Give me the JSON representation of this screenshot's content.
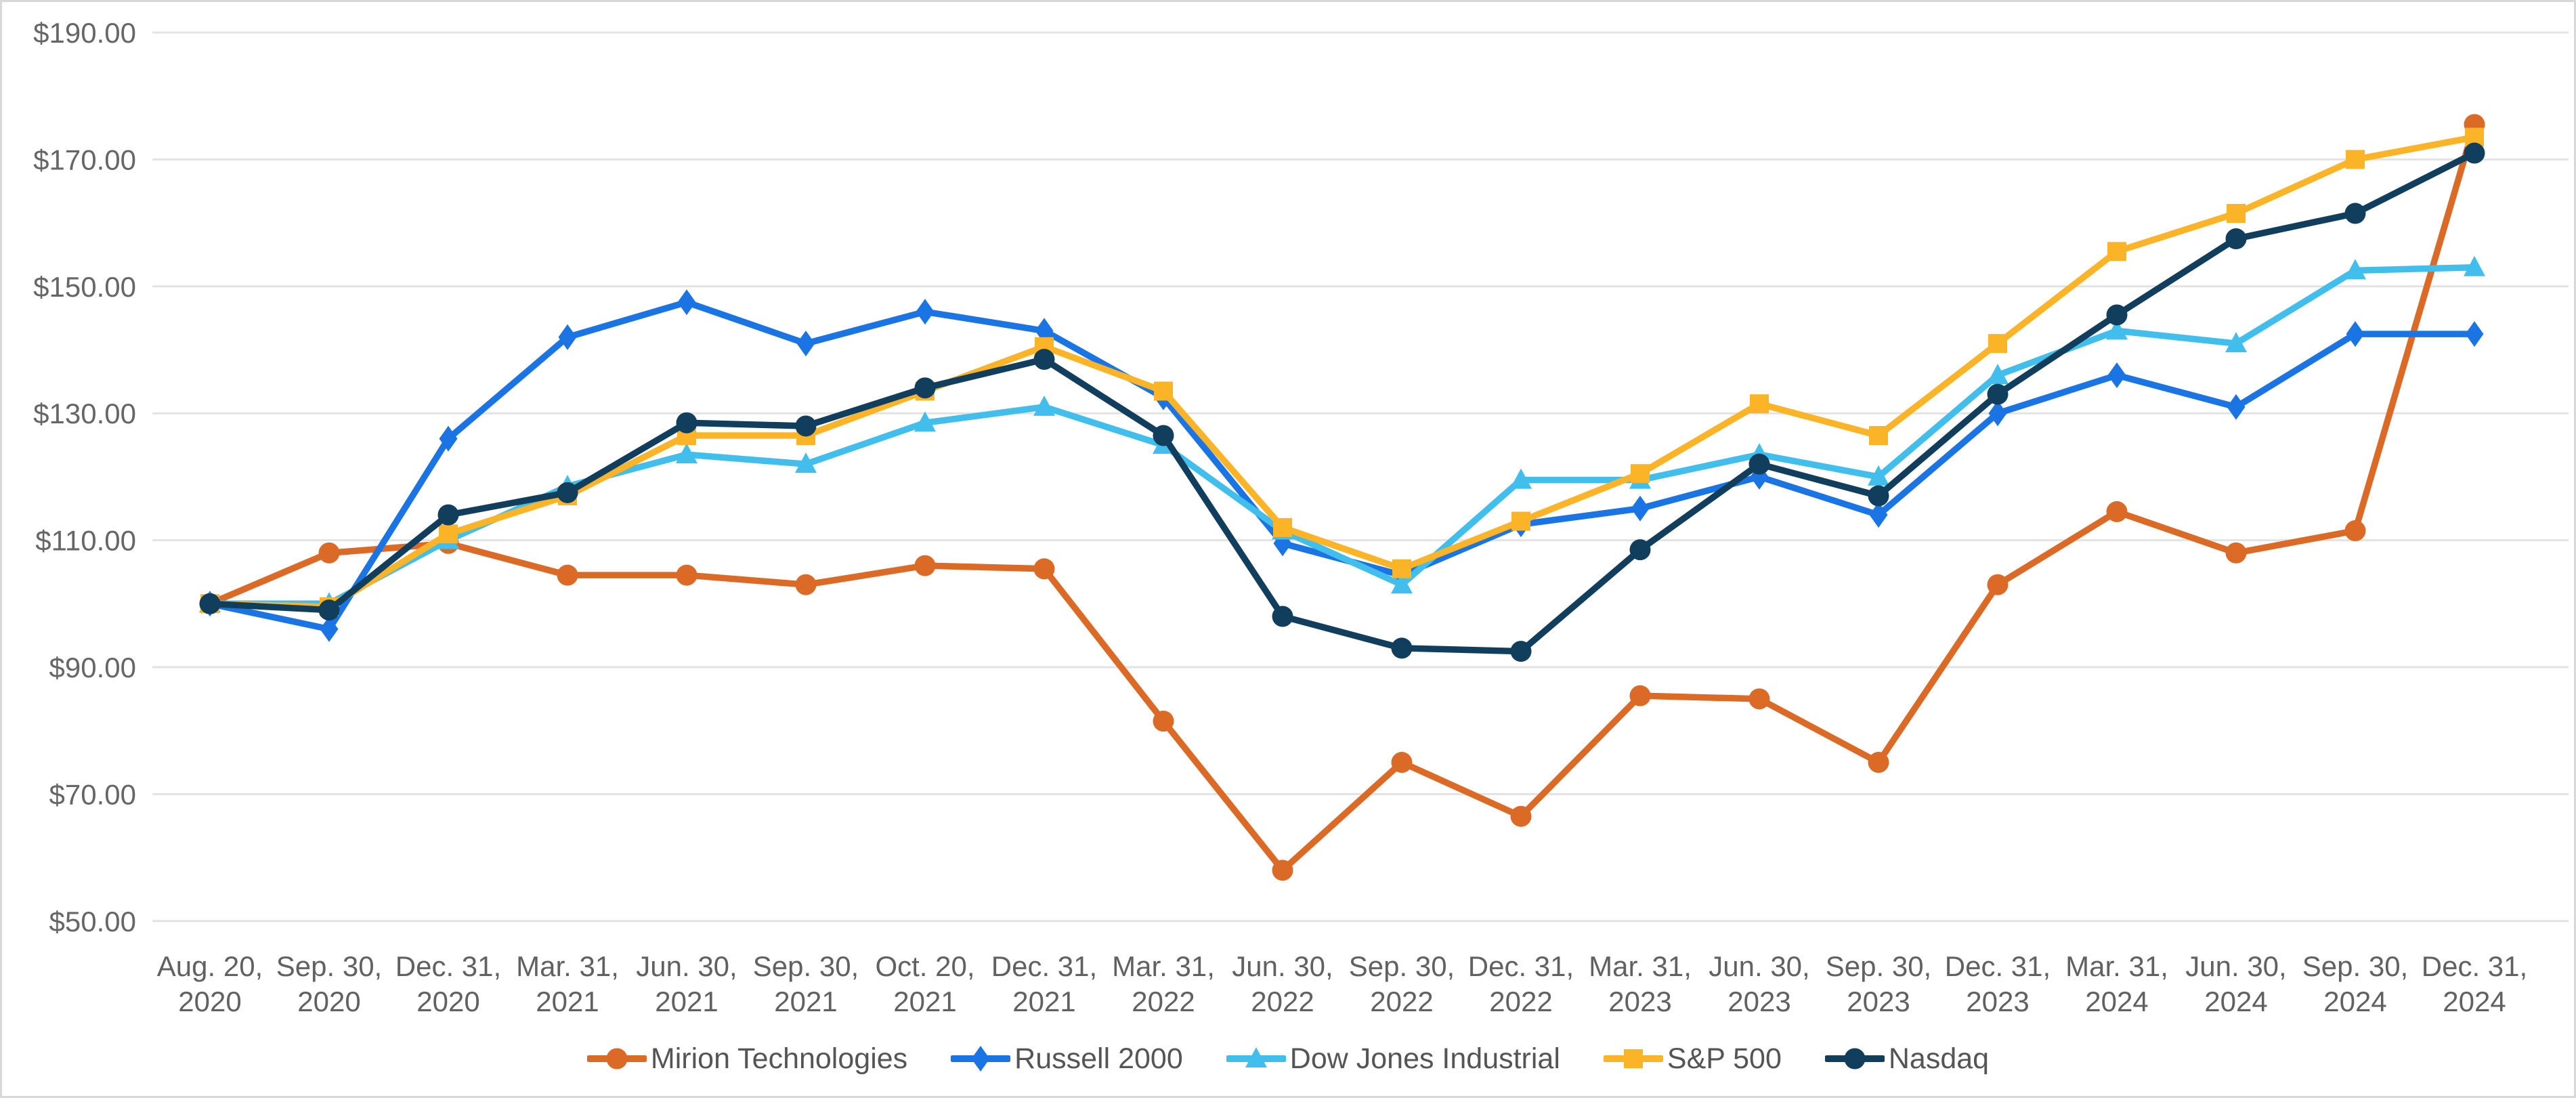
{
  "chart_data": {
    "type": "line",
    "title": "",
    "xlabel": "",
    "ylabel": "",
    "y_min": 50,
    "y_max": 190,
    "grid": true,
    "legend_position": "bottom",
    "y_ticks": [
      "$190.00",
      "$170.00",
      "$150.00",
      "$130.00",
      "$110.00",
      "$90.00",
      "$70.00",
      "$50.00"
    ],
    "categories": [
      "Aug. 20, 2020",
      "Sep. 30, 2020",
      "Dec. 31, 2020",
      "Mar. 31, 2021",
      "Jun. 30, 2021",
      "Sep. 30, 2021",
      "Oct. 20, 2021",
      "Dec. 31, 2021",
      "Mar. 31, 2022",
      "Jun. 30, 2022",
      "Sep. 30, 2022",
      "Dec. 31, 2022",
      "Mar. 31, 2023",
      "Jun. 30, 2023",
      "Sep. 30, 2023",
      "Dec. 31, 2023",
      "Mar. 31, 2024",
      "Jun. 30, 2024",
      "Sep. 30, 2024",
      "Dec. 31, 2024"
    ],
    "series": [
      {
        "name": "Mirion Technologies",
        "slug": "mirion-technologies",
        "color": "#DC6A27",
        "marker": "circle",
        "values": [
          100,
          108,
          109.5,
          104.5,
          104.5,
          103,
          106,
          105.5,
          81.5,
          58,
          75,
          66.5,
          85.5,
          85,
          75,
          103,
          114.5,
          108,
          111.5,
          175.5
        ]
      },
      {
        "name": "Russell 2000",
        "slug": "russell-2000",
        "color": "#1B74E4",
        "marker": "diamond",
        "values": [
          100,
          96,
          126,
          142,
          147.5,
          141,
          146,
          143,
          132.5,
          109.5,
          104.5,
          112.5,
          115,
          120,
          114,
          130,
          136,
          131,
          142.5,
          142.5
        ]
      },
      {
        "name": "Dow Jones Industrial",
        "slug": "dow-jones-industrial",
        "color": "#41BEEC",
        "marker": "triangle",
        "values": [
          100,
          100,
          110,
          118.5,
          123.5,
          122,
          128.5,
          131,
          125,
          111.5,
          103,
          119.5,
          119.5,
          123.5,
          120,
          136,
          143,
          141,
          152.5,
          153
        ]
      },
      {
        "name": "S&P 500",
        "slug": "sp-500",
        "color": "#FBB427",
        "marker": "square",
        "values": [
          100,
          99.5,
          111,
          117,
          126.5,
          126.5,
          133.5,
          140.5,
          133.5,
          112,
          105.5,
          113,
          120.5,
          131.5,
          126.5,
          141,
          155.5,
          161.5,
          170,
          173.5
        ]
      },
      {
        "name": "Nasdaq",
        "slug": "nasdaq",
        "color": "#113E5D",
        "marker": "circle",
        "values": [
          100,
          99,
          114,
          117.5,
          128.5,
          128,
          134,
          138.5,
          126.5,
          98,
          93,
          92.5,
          108.5,
          122,
          117,
          133,
          145.5,
          157.5,
          161.5,
          171
        ]
      }
    ],
    "colors": {
      "gridline": "#E3E3E3",
      "frame_border": "#D8D8D8",
      "tick_text": "#666666",
      "legend_text": "#555555",
      "background": "#FFFFFF"
    }
  }
}
